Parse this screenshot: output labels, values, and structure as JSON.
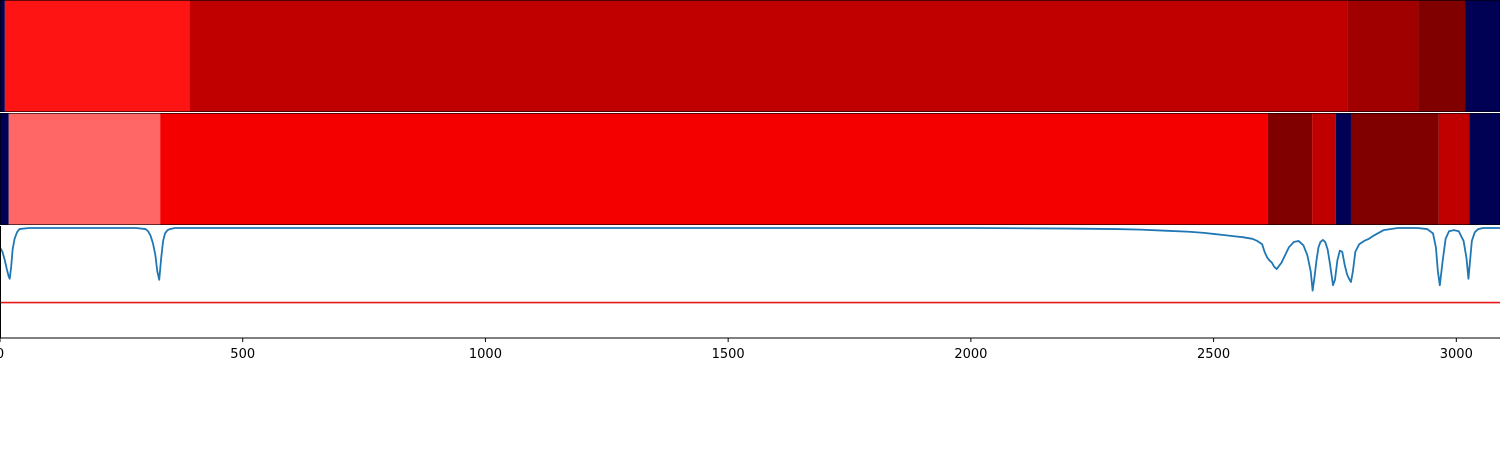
{
  "chart_data": [
    {
      "type": "heatmap",
      "name": "segment-strip-top",
      "segments": [
        {
          "start": -10,
          "end": 10,
          "color": "#000055"
        },
        {
          "start": 10,
          "end": 390,
          "color": "#ff1414"
        },
        {
          "start": 390,
          "end": 2775,
          "color": "#c00000"
        },
        {
          "start": 2775,
          "end": 2922,
          "color": "#a00000"
        },
        {
          "start": 2922,
          "end": 3018,
          "color": "#800000"
        },
        {
          "start": 3018,
          "end": 3090,
          "color": "#000055"
        }
      ]
    },
    {
      "type": "heatmap",
      "name": "segment-strip-bottom",
      "segments": [
        {
          "start": -10,
          "end": 18,
          "color": "#000055"
        },
        {
          "start": 18,
          "end": 330,
          "color": "#ff6666"
        },
        {
          "start": 330,
          "end": 2612,
          "color": "#f50000"
        },
        {
          "start": 2612,
          "end": 2703,
          "color": "#800000"
        },
        {
          "start": 2703,
          "end": 2752,
          "color": "#c00000"
        },
        {
          "start": 2752,
          "end": 2783,
          "color": "#000055"
        },
        {
          "start": 2783,
          "end": 2964,
          "color": "#800000"
        },
        {
          "start": 2964,
          "end": 3027,
          "color": "#c00000"
        },
        {
          "start": 3027,
          "end": 3090,
          "color": "#000055"
        }
      ]
    },
    {
      "type": "line",
      "xlim": [
        0,
        3090
      ],
      "ylim": [
        0,
        1
      ],
      "xticks": [
        0,
        500,
        1000,
        1500,
        2000,
        2500,
        3000
      ],
      "threshold": {
        "y": 0.31,
        "color": "#e41a1c"
      },
      "series": [
        {
          "color": "#1f77b4",
          "x": [
            0,
            5,
            10,
            14,
            18,
            20,
            23,
            26,
            30,
            35,
            40,
            60,
            100,
            200,
            280,
            300,
            305,
            310,
            315,
            320,
            324,
            328,
            332,
            336,
            340,
            345,
            350,
            360,
            380,
            500,
            1000,
            1500,
            2000,
            2200,
            2300,
            2350,
            2400,
            2450,
            2480,
            2500,
            2520,
            2540,
            2560,
            2580,
            2590,
            2600,
            2605,
            2610,
            2615,
            2620,
            2625,
            2630,
            2640,
            2655,
            2665,
            2675,
            2685,
            2693,
            2700,
            2704,
            2708,
            2712,
            2716,
            2720,
            2725,
            2730,
            2735,
            2740,
            2746,
            2750,
            2755,
            2760,
            2765,
            2770,
            2775,
            2779,
            2783,
            2787,
            2792,
            2800,
            2810,
            2820,
            2830,
            2850,
            2880,
            2920,
            2940,
            2952,
            2958,
            2962,
            2966,
            2972,
            2978,
            2985,
            2995,
            3005,
            3015,
            3021,
            3025,
            3028,
            3032,
            3038,
            3045,
            3055,
            3070,
            3090
          ],
          "y": [
            0.82,
            0.78,
            0.7,
            0.62,
            0.55,
            0.53,
            0.64,
            0.8,
            0.9,
            0.96,
            0.99,
            1.0,
            1.0,
            1.0,
            1.0,
            0.99,
            0.97,
            0.93,
            0.86,
            0.75,
            0.6,
            0.52,
            0.72,
            0.88,
            0.95,
            0.98,
            0.99,
            1.0,
            1.0,
            1.0,
            1.0,
            1.0,
            1.0,
            0.995,
            0.99,
            0.985,
            0.975,
            0.965,
            0.955,
            0.945,
            0.935,
            0.925,
            0.915,
            0.9,
            0.88,
            0.85,
            0.78,
            0.73,
            0.7,
            0.68,
            0.64,
            0.62,
            0.68,
            0.82,
            0.87,
            0.88,
            0.84,
            0.75,
            0.6,
            0.42,
            0.55,
            0.7,
            0.82,
            0.87,
            0.89,
            0.87,
            0.8,
            0.66,
            0.47,
            0.52,
            0.7,
            0.79,
            0.78,
            0.66,
            0.57,
            0.53,
            0.5,
            0.6,
            0.78,
            0.85,
            0.88,
            0.9,
            0.93,
            0.98,
            1.0,
            1.0,
            0.99,
            0.95,
            0.82,
            0.6,
            0.47,
            0.7,
            0.9,
            0.97,
            0.98,
            0.97,
            0.88,
            0.72,
            0.53,
            0.68,
            0.88,
            0.96,
            0.99,
            1.0,
            1.0,
            1.0
          ]
        }
      ]
    }
  ]
}
